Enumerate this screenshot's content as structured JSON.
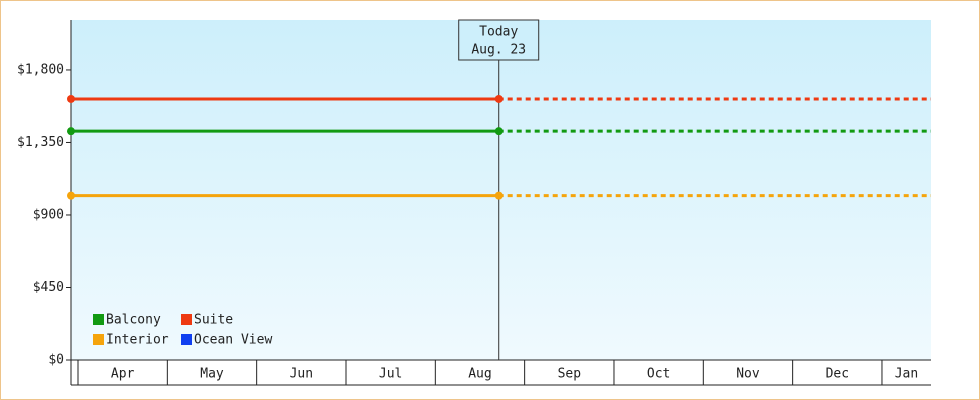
{
  "chart_data": {
    "type": "line",
    "categories": [
      "Apr",
      "May",
      "Jun",
      "Jul",
      "Aug",
      "Sep",
      "Oct",
      "Nov",
      "Dec",
      "Jan"
    ],
    "series": [
      {
        "name": "Balcony",
        "color": "#129a12",
        "value": 1420
      },
      {
        "name": "Suite",
        "color": "#ee3a12",
        "value": 1620
      },
      {
        "name": "Interior",
        "color": "#f5a40c",
        "value": 1020
      },
      {
        "name": "Ocean View",
        "color": "#1040f0",
        "value": null
      }
    ],
    "ylim": [
      0,
      2110
    ],
    "yticks": [
      {
        "value": 0,
        "label": "$0"
      },
      {
        "value": 450,
        "label": "$450"
      },
      {
        "value": 900,
        "label": "$900"
      },
      {
        "value": 1350,
        "label": "$1,350"
      },
      {
        "value": 1800,
        "label": "$1,800"
      }
    ],
    "annotation": {
      "label": "Today",
      "date": "Aug. 23"
    }
  }
}
